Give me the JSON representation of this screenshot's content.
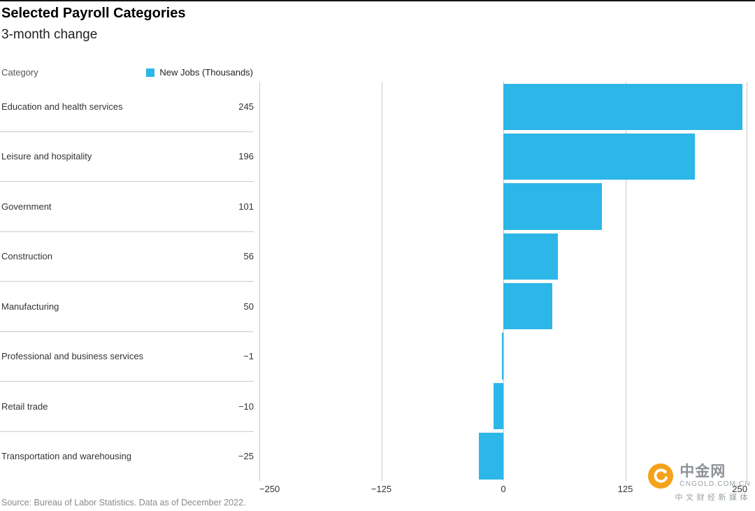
{
  "header": {
    "title": "Selected Payroll Categories",
    "subtitle": "3-month change"
  },
  "table": {
    "category_header": "Category"
  },
  "chart_data": {
    "type": "bar",
    "orientation": "horizontal",
    "title": "Selected Payroll Categories",
    "subtitle": "3-month change",
    "series_name": "New Jobs (Thousands)",
    "categories": [
      "Education and health services",
      "Leisure and hospitality",
      "Government",
      "Construction",
      "Manufacturing",
      "Professional and business services",
      "Retail trade",
      "Transportation and warehousing"
    ],
    "values": [
      245,
      196,
      101,
      56,
      50,
      -1,
      -10,
      -25
    ],
    "value_labels": [
      "245",
      "196",
      "101",
      "56",
      "50",
      "−1",
      "−10",
      "−25"
    ],
    "xlim": [
      -250,
      250
    ],
    "x_ticks": [
      -250,
      -125,
      0,
      125,
      250
    ],
    "x_tick_labels": [
      "−250",
      "−125",
      "0",
      "125",
      "250"
    ],
    "bar_color": "#2db6e8",
    "gridline_color": "#c9c9c9",
    "grid": true,
    "legend_position": "top-left-table"
  },
  "footer": {
    "source": "Source: Bureau of Labor Statistics. Data as of December 2022."
  },
  "watermark": {
    "name_cn": "中金网",
    "domain": "CNGOLD.COM.CN",
    "tagline": "中文财经新媒体",
    "logo_color": "#f5a21b"
  }
}
